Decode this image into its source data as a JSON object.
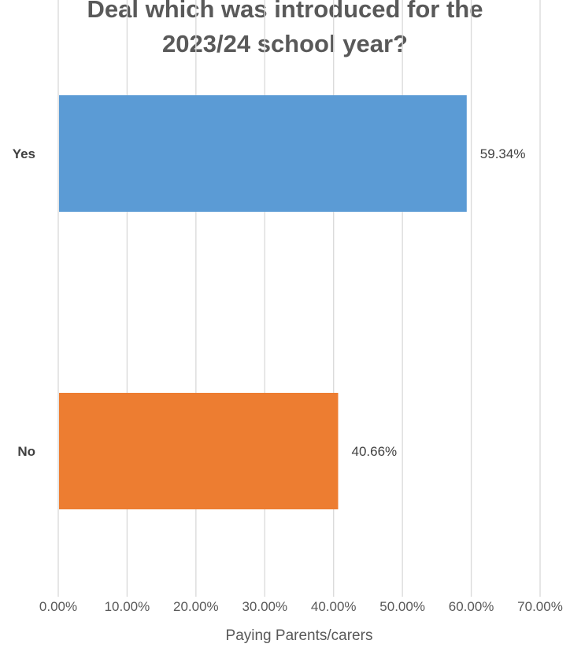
{
  "chart_data": {
    "type": "bar",
    "orientation": "horizontal",
    "title_lines": [
      "Deal which was introduced for the",
      "2023/24 school year?"
    ],
    "categories": [
      "Yes",
      "No"
    ],
    "values": [
      59.34,
      40.66
    ],
    "data_labels": [
      "59.34%",
      "40.66%"
    ],
    "colors": [
      "#5B9BD5",
      "#ED7D31"
    ],
    "xlabel": "Paying Parents/carers",
    "xlim": [
      0,
      70
    ],
    "x_ticks": [
      0,
      10,
      20,
      30,
      40,
      50,
      60,
      70
    ],
    "x_tick_labels": [
      "0.00%",
      "10.00%",
      "20.00%",
      "30.00%",
      "40.00%",
      "50.00%",
      "60.00%",
      "70.00%"
    ],
    "grid": "vertical",
    "legend": "none"
  }
}
